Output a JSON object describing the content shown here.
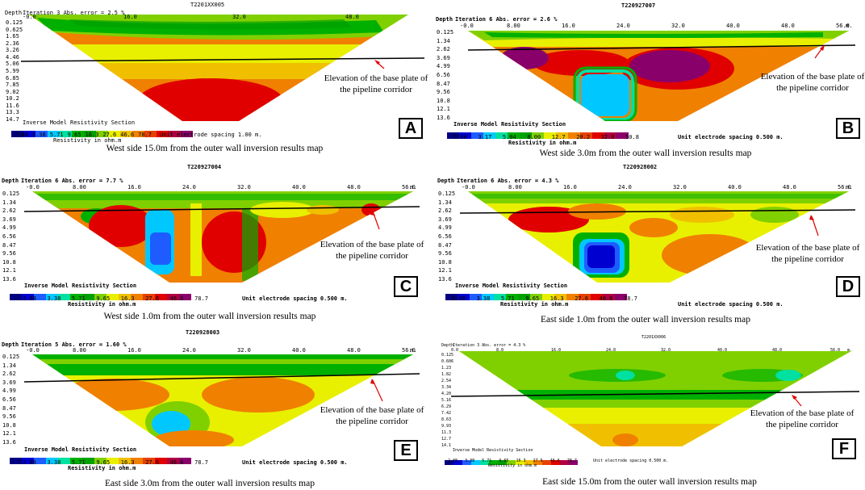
{
  "panels": [
    {
      "letter": "A",
      "title": "T2201XX005",
      "depth_label": "Depth",
      "iteration": "Iteration 3 Abs. error = 2.5 %",
      "x_ticks": [
        "-0.0",
        "16.0",
        "32.0",
        "48.0"
      ],
      "x_unit": "",
      "depths": [
        "0.125",
        "0.625",
        "1.65",
        "2.36",
        "3.26",
        "4.46",
        "5.06",
        "5.99",
        "6.85",
        "7.85",
        "9.02",
        "10.2",
        "11.6",
        "13.3",
        "14.7"
      ],
      "legend_title": "Inverse Model Resistivity Section",
      "legend_values": [
        "2.88",
        "3.38",
        "5.71",
        "9.65",
        "16.3",
        "27.6",
        "46.6",
        "78.7"
      ],
      "legend_unit": "Resistivity in ohm.m",
      "spacing": "Unit electrode spacing 1.00 m.",
      "annotation_line1": "Elevation of the base plate of",
      "annotation_line2": "the pipeline corridor",
      "caption": "West side 15.0m from the outer wall inversion results map"
    },
    {
      "letter": "B",
      "title": "T220927007",
      "depth_label": "Depth",
      "iteration": "Iteration 6 Abs. error = 2.6 %",
      "x_ticks": [
        "-0.0",
        "8.00",
        "16.0",
        "24.0",
        "32.0",
        "40.0",
        "48.0",
        "56.0"
      ],
      "x_unit": "m.",
      "depths": [
        "0.125",
        "1.34",
        "2.62",
        "3.69",
        "4.99",
        "6.56",
        "8.47",
        "9.56",
        "10.8",
        "12.1",
        "13.6"
      ],
      "legend_title": "Inverse Model Resistivity Section",
      "legend_values": [
        "2.08",
        "3.17",
        "5.04",
        "8.00",
        "12.7",
        "20.2",
        "32.0",
        "50.8"
      ],
      "legend_unit": "Resistivity in ohm.m",
      "spacing": "Unit electrode spacing 0.500 m.",
      "annotation_line1": "Elevation of the base plate of",
      "annotation_line2": "the pipeline corridor",
      "caption": "West side 3.0m from the outer wall inversion results map"
    },
    {
      "letter": "C",
      "title": "T220927004",
      "depth_label": "Depth",
      "iteration": "Iteration 6 Abs. error = 7.7 %",
      "x_ticks": [
        "-0.0",
        "8.00",
        "16.0",
        "24.0",
        "32.0",
        "40.0",
        "48.0",
        "56.0"
      ],
      "x_unit": "m.",
      "depths": [
        "0.125",
        "1.34",
        "2.62",
        "3.69",
        "4.99",
        "6.56",
        "8.47",
        "9.56",
        "10.8",
        "12.1",
        "13.6"
      ],
      "legend_title": "Inverse Model Resistivity Section",
      "legend_values": [
        "2.08",
        "3.38",
        "5.71",
        "9.65",
        "16.3",
        "27.6",
        "46.6",
        "78.7"
      ],
      "legend_unit": "Resistivity in ohm.m",
      "spacing": "Unit electrode spacing 0.500 m.",
      "annotation_line1": "Elevation of the base plate of",
      "annotation_line2": "the pipeline corridor",
      "caption": "West side 1.0m from the outer wall inversion results map"
    },
    {
      "letter": "D",
      "title": "T220928002",
      "depth_label": "Depth",
      "iteration": "Iteration 6 Abs. error = 4.3 %",
      "x_ticks": [
        "-0.0",
        "8.00",
        "16.0",
        "24.0",
        "32.0",
        "40.0",
        "48.0",
        "56.0"
      ],
      "x_unit": "m.",
      "depths": [
        "0.125",
        "1.34",
        "2.62",
        "3.69",
        "4.99",
        "6.56",
        "8.47",
        "9.56",
        "10.8",
        "12.1",
        "13.6"
      ],
      "legend_title": "Inverse Model Resistivity Section",
      "legend_values": [
        "2.08",
        "3.38",
        "5.71",
        "9.65",
        "16.3",
        "27.6",
        "46.6",
        "78.7"
      ],
      "legend_unit": "Resistivity in ohm.m",
      "spacing": "Unit electrode spacing 0.500 m.",
      "annotation_line1": "Elevation of the base plate of",
      "annotation_line2": "the pipeline corridor",
      "caption": "East side 1.0m from the outer wall inversion results map"
    },
    {
      "letter": "E",
      "title": "T220928003",
      "depth_label": "Depth",
      "iteration": "Iteration 5 Abs. error = 1.60 %",
      "x_ticks": [
        "-0.0",
        "8.00",
        "16.0",
        "24.0",
        "32.0",
        "40.0",
        "48.0",
        "56.0"
      ],
      "x_unit": "m.",
      "depths": [
        "0.125",
        "1.34",
        "2.62",
        "3.69",
        "4.99",
        "6.56",
        "8.47",
        "9.56",
        "10.8",
        "12.1",
        "13.6"
      ],
      "legend_title": "Inverse Model Resistivity Section",
      "legend_values": [
        "2.08",
        "3.38",
        "5.71",
        "9.65",
        "16.3",
        "27.6",
        "46.6",
        "78.7"
      ],
      "legend_unit": "Resistivity in ohm.m",
      "spacing": "Unit electrode spacing 0.500 m.",
      "annotation_line1": "Elevation of the base plate of",
      "annotation_line2": "the pipeline corridor",
      "caption": "East side 3.0m from the outer wall inversion results map"
    },
    {
      "letter": "F",
      "title": "T2201XX006",
      "depth_label": "Depth",
      "iteration": "Iteration 3 Abs. error = 4.3 %",
      "x_ticks": [
        "0.0",
        "8.0",
        "16.0",
        "24.0",
        "32.0",
        "40.0",
        "48.0",
        "56.0"
      ],
      "x_unit": "m.",
      "depths": [
        "0.125",
        "0.606",
        "1.23",
        "1.82",
        "2.54",
        "3.34",
        "4.20",
        "5.16",
        "6.29",
        "7.42",
        "8.63",
        "9.93",
        "11.3",
        "12.7",
        "14.1"
      ],
      "legend_title": "Inverse Model Resistivity Section",
      "legend_values": [
        "2.08",
        "3.38",
        "5.71",
        "9.65",
        "16.3",
        "27.6",
        "46.6",
        "78.7"
      ],
      "legend_unit": "Resistivity in ohm.m",
      "spacing": "Unit electrode spacing 0.500 m.",
      "annotation_line1": "Elevation of the base plate of",
      "annotation_line2": "the pipeline corridor",
      "caption": "East side 15.0m from the outer wall inversion results map"
    }
  ],
  "colors": {
    "scale": [
      "#000080",
      "#0000d0",
      "#1e5cff",
      "#00c8ff",
      "#00e0a0",
      "#00b000",
      "#00a000",
      "#80d000",
      "#e8f000",
      "#f0c000",
      "#f08000",
      "#e84000",
      "#e00000",
      "#b00040",
      "#8a006a"
    ],
    "base_line": "#000000",
    "arrow": "#e00000"
  }
}
